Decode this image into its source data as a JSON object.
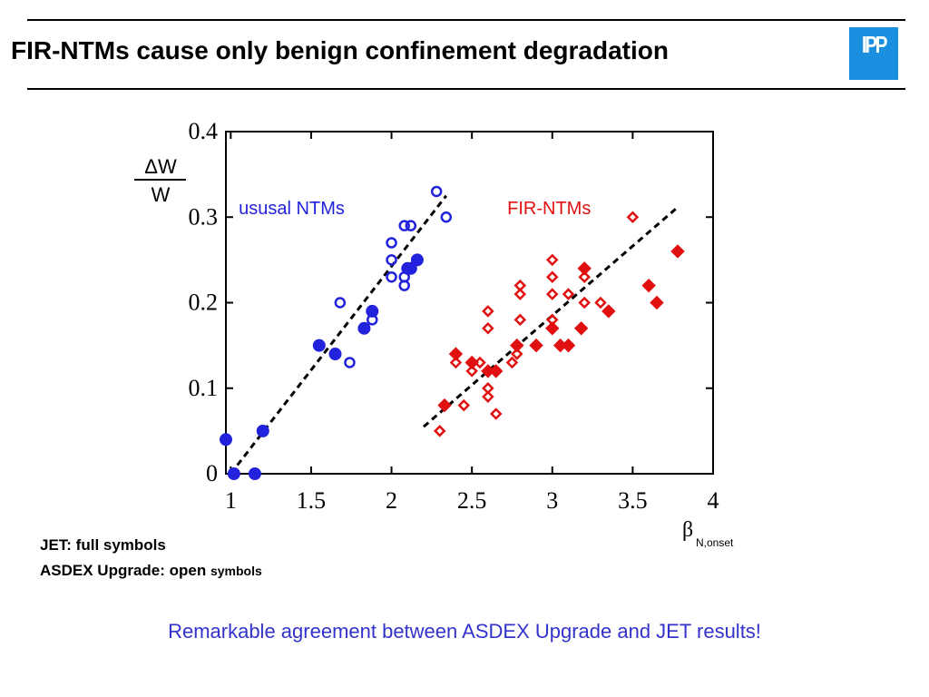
{
  "title": "FIR-NTMs cause only benign confinement degradation",
  "logo_text": "IPP",
  "notes": {
    "jet": "JET: full symbols",
    "aug_prefix": "ASDEX Upgrade: open",
    "aug_suffix": "symbols"
  },
  "conclusion": "Remarkable agreement between ASDEX Upgrade and JET results!",
  "colors": {
    "usual": "#2222dd",
    "fir": "#e01010",
    "conclusion": "#3333cc",
    "logo": "#1a8fe0"
  },
  "chart_data": {
    "type": "scatter",
    "ylabel_numerator": "ΔW",
    "ylabel_denominator": "W",
    "xlabel_symbol": "β",
    "xlabel_subscript": "N,onset",
    "xlim": [
      0.97,
      4.0
    ],
    "ylim": [
      0,
      0.4
    ],
    "xticks": [
      {
        "value": 1,
        "label": "1"
      },
      {
        "value": 1.5,
        "label": "1.5"
      },
      {
        "value": 2,
        "label": "2"
      },
      {
        "value": 2.5,
        "label": "2.5"
      },
      {
        "value": 3,
        "label": "3"
      },
      {
        "value": 3.5,
        "label": "3.5"
      },
      {
        "value": 4,
        "label": "4"
      }
    ],
    "yticks": [
      {
        "value": 0,
        "label": "0"
      },
      {
        "value": 0.1,
        "label": "0.1"
      },
      {
        "value": 0.2,
        "label": "0.2"
      },
      {
        "value": 0.3,
        "label": "0.3"
      },
      {
        "value": 0.4,
        "label": "0.4"
      }
    ],
    "annotations": [
      {
        "text": "ususal NTMs",
        "series": "usual",
        "x": 1.05,
        "y": 0.31
      },
      {
        "text": "FIR-NTMs",
        "series": "fir",
        "x": 2.72,
        "y": 0.31
      }
    ],
    "legend_markers": [
      {
        "series": "fir",
        "marker": "diamond-open",
        "x": 3.5,
        "y": 0.3
      }
    ],
    "series": [
      {
        "key": "usual-jet",
        "color_key": "usual",
        "marker": "circle-filled",
        "points": [
          [
            0.97,
            0.04
          ],
          [
            1.02,
            0.0
          ],
          [
            1.15,
            0.0
          ],
          [
            1.2,
            0.05
          ],
          [
            1.55,
            0.15
          ],
          [
            1.65,
            0.14
          ],
          [
            1.83,
            0.17
          ],
          [
            1.88,
            0.19
          ],
          [
            2.1,
            0.24
          ],
          [
            2.12,
            0.24
          ],
          [
            2.16,
            0.25
          ]
        ]
      },
      {
        "key": "usual-aug",
        "color_key": "usual",
        "marker": "circle-open",
        "points": [
          [
            1.68,
            0.2
          ],
          [
            1.74,
            0.13
          ],
          [
            1.88,
            0.18
          ],
          [
            2.0,
            0.27
          ],
          [
            2.0,
            0.25
          ],
          [
            2.0,
            0.23
          ],
          [
            2.08,
            0.29
          ],
          [
            2.12,
            0.29
          ],
          [
            2.08,
            0.23
          ],
          [
            2.08,
            0.22
          ],
          [
            2.28,
            0.33
          ],
          [
            2.34,
            0.3
          ]
        ]
      },
      {
        "key": "fir-jet",
        "color_key": "fir",
        "marker": "diamond-filled",
        "points": [
          [
            2.33,
            0.08
          ],
          [
            2.4,
            0.14
          ],
          [
            2.5,
            0.13
          ],
          [
            2.6,
            0.12
          ],
          [
            2.65,
            0.12
          ],
          [
            2.78,
            0.15
          ],
          [
            2.9,
            0.15
          ],
          [
            3.0,
            0.17
          ],
          [
            3.05,
            0.15
          ],
          [
            3.1,
            0.15
          ],
          [
            3.18,
            0.17
          ],
          [
            3.2,
            0.24
          ],
          [
            3.35,
            0.19
          ],
          [
            3.6,
            0.22
          ],
          [
            3.65,
            0.2
          ],
          [
            3.78,
            0.26
          ]
        ]
      },
      {
        "key": "fir-aug",
        "color_key": "fir",
        "marker": "diamond-open",
        "points": [
          [
            2.3,
            0.05
          ],
          [
            2.4,
            0.13
          ],
          [
            2.45,
            0.08
          ],
          [
            2.5,
            0.12
          ],
          [
            2.55,
            0.13
          ],
          [
            2.6,
            0.1
          ],
          [
            2.6,
            0.09
          ],
          [
            2.6,
            0.17
          ],
          [
            2.6,
            0.19
          ],
          [
            2.65,
            0.07
          ],
          [
            2.75,
            0.13
          ],
          [
            2.78,
            0.14
          ],
          [
            2.8,
            0.18
          ],
          [
            2.8,
            0.21
          ],
          [
            2.8,
            0.22
          ],
          [
            3.0,
            0.25
          ],
          [
            3.0,
            0.23
          ],
          [
            3.0,
            0.21
          ],
          [
            3.0,
            0.18
          ],
          [
            3.1,
            0.21
          ],
          [
            3.2,
            0.23
          ],
          [
            3.2,
            0.2
          ],
          [
            3.3,
            0.2
          ]
        ]
      }
    ],
    "fits": [
      {
        "color": "#000000",
        "style": "dashed",
        "from": [
          1.0,
          0.0
        ],
        "to": [
          2.34,
          0.325
        ]
      },
      {
        "color": "#000000",
        "style": "dashed",
        "from": [
          2.2,
          0.055
        ],
        "to": [
          3.77,
          0.31
        ]
      }
    ]
  }
}
